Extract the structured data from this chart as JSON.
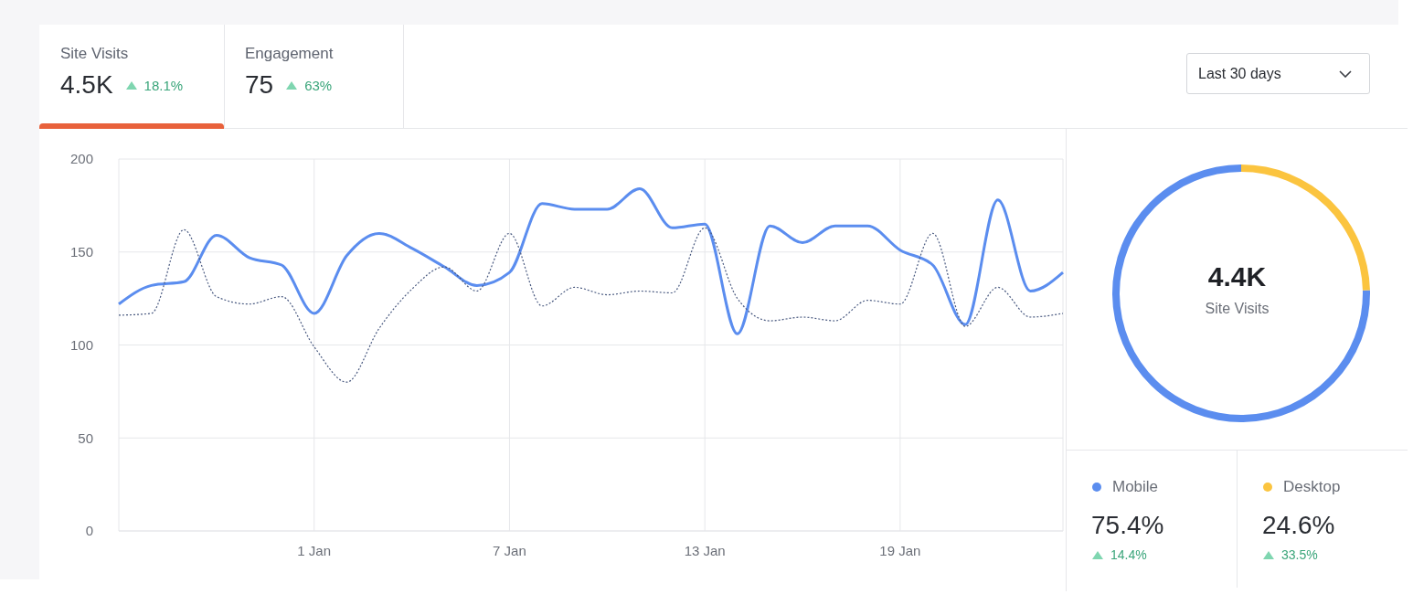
{
  "chart_data": [
    {
      "type": "other",
      "annotations": [
        "Site Visits",
        "4.5K",
        "18.1%",
        "Engagement",
        "75",
        "63%",
        "Last 30 days"
      ]
    },
    {
      "type": "line",
      "categories": [
        null,
        null,
        null,
        null,
        null,
        null,
        "1 Jan",
        null,
        null,
        null,
        null,
        null,
        "7 Jan",
        null,
        null,
        null,
        null,
        null,
        "13 Jan",
        null,
        null,
        null,
        null,
        null,
        "19 Jan",
        null,
        null,
        null,
        null,
        null
      ],
      "series": [
        {
          "color": "#5b8def",
          "line_style": "solid",
          "values": [
            122,
            132,
            134,
            159,
            147,
            143,
            117,
            148,
            160,
            152,
            142,
            132,
            139,
            176,
            173,
            173,
            184,
            163,
            165,
            106,
            164,
            155,
            164,
            164,
            151,
            143,
            111,
            178,
            129,
            139
          ]
        },
        {
          "color": "#4a5a80",
          "line_style": "dotted",
          "values": [
            116,
            117,
            162,
            126,
            122,
            126,
            99,
            80,
            109,
            130,
            142,
            129,
            160,
            121,
            131,
            127,
            129,
            128,
            163,
            125,
            113,
            115,
            113,
            124,
            122,
            160,
            110,
            131,
            115,
            117
          ]
        }
      ],
      "ylim": [
        0,
        200
      ],
      "yticks": [
        0,
        50,
        100,
        150,
        200
      ],
      "grid": true,
      "marker": "none"
    },
    {
      "type": "donut",
      "title": "4.4K",
      "subtitle": "Site Visits",
      "categories": [
        "Mobile",
        "Desktop"
      ],
      "values": [
        75.4,
        24.6
      ],
      "colors": [
        "#5b8def",
        "#fbc43f"
      ],
      "value_labels": [
        "75.4%",
        "24.6%"
      ],
      "annotations": [
        "14.4%",
        "33.5%"
      ],
      "legend": "bottom"
    }
  ]
}
